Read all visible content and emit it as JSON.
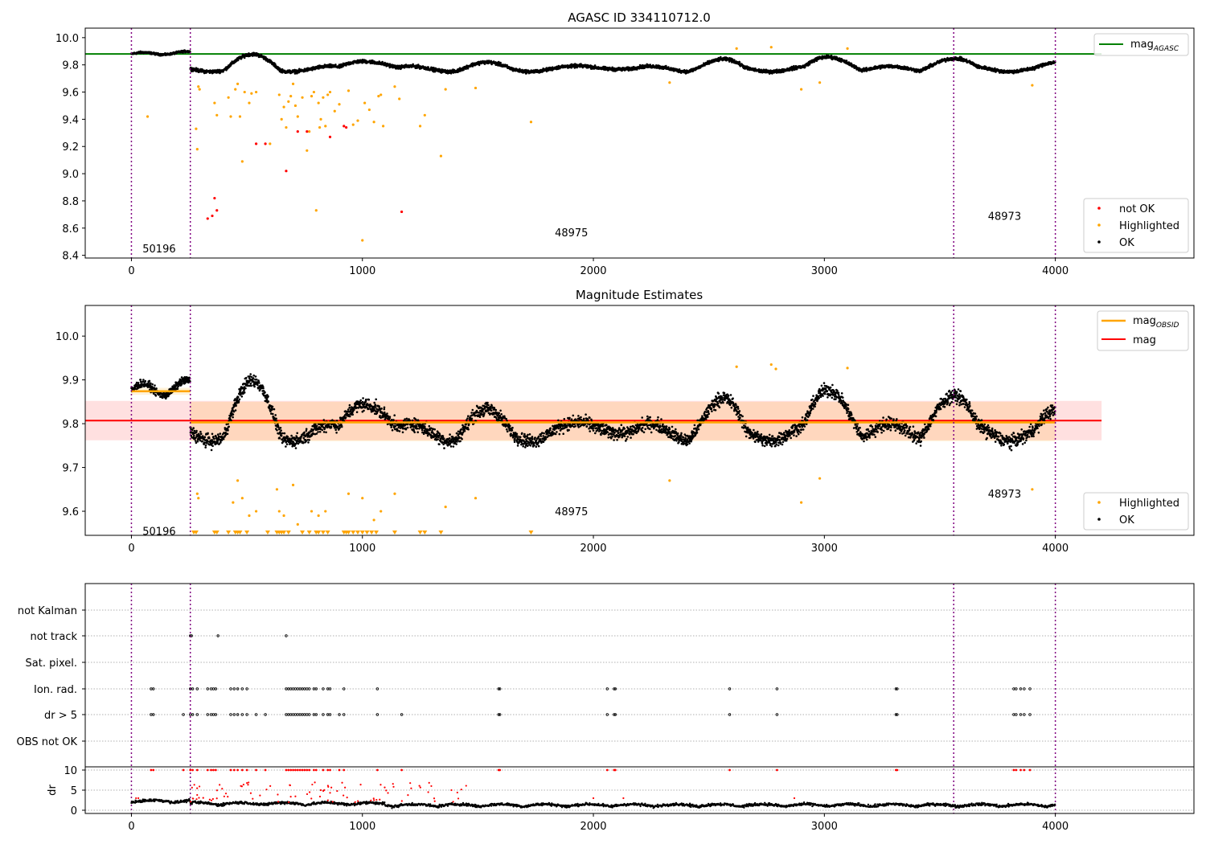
{
  "chart_data": [
    {
      "type": "scatter",
      "title": "AGASC ID 334110712.0",
      "xlim": [
        -200,
        4600
      ],
      "ylim": [
        8.38,
        10.07
      ],
      "x_ticks": [
        0,
        1000,
        2000,
        3000,
        4000
      ],
      "y_ticks": [
        8.4,
        8.6,
        8.8,
        9.0,
        9.2,
        9.4,
        9.6,
        9.8,
        10.0
      ],
      "x_tick_labels": [
        "0",
        "1000",
        "2000",
        "3000",
        "4000"
      ],
      "y_tick_labels": [
        "8.4",
        "8.6",
        "8.8",
        "9.0",
        "9.2",
        "9.4",
        "9.6",
        "9.8",
        "10.0"
      ],
      "legend_top": {
        "position": "upper-right",
        "entries": [
          "mag_AGASC"
        ]
      },
      "legend_bottom": {
        "position": "lower-right",
        "entries": [
          "not OK",
          "Highlighted",
          "OK"
        ]
      },
      "mag_agasc": 9.88,
      "mag_agasc_x_end": 4200,
      "obs_boundaries": [
        0,
        255,
        3560,
        4000
      ],
      "obs_labels": [
        {
          "text": "50196",
          "x": 120,
          "y": 8.45
        },
        {
          "text": "48975",
          "x": 1905,
          "y": 8.57
        },
        {
          "text": "48973",
          "x": 3780,
          "y": 8.69
        }
      ],
      "series": [
        {
          "name": "OK",
          "color": "#000000",
          "shape": "circle",
          "description": "~4000 points; 9.85-9.91 for x<255, then oscillating 9.71-9.90 with baseline near 9.78"
        },
        {
          "name": "Highlighted",
          "color": "#ffa500",
          "shape": "circle",
          "points": [
            [
              70,
              9.42
            ],
            [
              280,
              9.33
            ],
            [
              285,
              9.18
            ],
            [
              290,
              9.64
            ],
            [
              295,
              9.62
            ],
            [
              360,
              9.52
            ],
            [
              370,
              9.43
            ],
            [
              420,
              9.56
            ],
            [
              430,
              9.42
            ],
            [
              450,
              9.62
            ],
            [
              460,
              9.66
            ],
            [
              470,
              9.42
            ],
            [
              480,
              9.09
            ],
            [
              490,
              9.6
            ],
            [
              510,
              9.52
            ],
            [
              520,
              9.59
            ],
            [
              540,
              9.6
            ],
            [
              600,
              9.22
            ],
            [
              640,
              9.58
            ],
            [
              650,
              9.4
            ],
            [
              660,
              9.49
            ],
            [
              670,
              9.34
            ],
            [
              680,
              9.53
            ],
            [
              690,
              9.57
            ],
            [
              700,
              9.66
            ],
            [
              710,
              9.5
            ],
            [
              720,
              9.42
            ],
            [
              740,
              9.56
            ],
            [
              760,
              9.17
            ],
            [
              770,
              9.31
            ],
            [
              780,
              9.57
            ],
            [
              790,
              9.6
            ],
            [
              800,
              8.73
            ],
            [
              810,
              9.52
            ],
            [
              815,
              9.34
            ],
            [
              820,
              9.4
            ],
            [
              830,
              9.56
            ],
            [
              840,
              9.35
            ],
            [
              850,
              9.58
            ],
            [
              860,
              9.6
            ],
            [
              880,
              9.46
            ],
            [
              900,
              9.51
            ],
            [
              940,
              9.61
            ],
            [
              960,
              9.36
            ],
            [
              980,
              9.39
            ],
            [
              1000,
              8.51
            ],
            [
              1010,
              9.52
            ],
            [
              1030,
              9.47
            ],
            [
              1050,
              9.38
            ],
            [
              1070,
              9.57
            ],
            [
              1080,
              9.58
            ],
            [
              1090,
              9.35
            ],
            [
              1140,
              9.64
            ],
            [
              1160,
              9.55
            ],
            [
              1250,
              9.35
            ],
            [
              1270,
              9.43
            ],
            [
              1340,
              9.13
            ],
            [
              1360,
              9.62
            ],
            [
              1490,
              9.63
            ],
            [
              1730,
              9.38
            ],
            [
              2330,
              9.67
            ],
            [
              2620,
              9.92
            ],
            [
              2770,
              9.93
            ],
            [
              2900,
              9.62
            ],
            [
              2980,
              9.67
            ],
            [
              3100,
              9.92
            ],
            [
              3900,
              9.65
            ]
          ]
        },
        {
          "name": "not OK",
          "color": "#ff0000",
          "shape": "circle",
          "points": [
            [
              330,
              8.67
            ],
            [
              350,
              8.69
            ],
            [
              360,
              8.82
            ],
            [
              370,
              8.73
            ],
            [
              540,
              9.22
            ],
            [
              580,
              9.22
            ],
            [
              670,
              9.02
            ],
            [
              720,
              9.31
            ],
            [
              760,
              9.31
            ],
            [
              860,
              9.27
            ],
            [
              920,
              9.35
            ],
            [
              930,
              9.34
            ],
            [
              1170,
              8.72
            ]
          ]
        }
      ]
    },
    {
      "type": "scatter",
      "title": "Magnitude Estimates",
      "xlim": [
        -200,
        4600
      ],
      "ylim": [
        9.545,
        10.07
      ],
      "x_ticks": [
        0,
        1000,
        2000,
        3000,
        4000
      ],
      "y_ticks": [
        9.6,
        9.7,
        9.8,
        9.9,
        10.0
      ],
      "x_tick_labels": [
        "0",
        "1000",
        "2000",
        "3000",
        "4000"
      ],
      "y_tick_labels": [
        "9.6",
        "9.7",
        "9.8",
        "9.9",
        "10.0"
      ],
      "legend_top": {
        "position": "upper-right",
        "entries": [
          "mag_OBSID",
          "mag"
        ]
      },
      "legend_bottom": {
        "position": "lower-right",
        "entries": [
          "Highlighted",
          "OK"
        ]
      },
      "mag": 9.807,
      "mag_band": [
        9.762,
        9.852
      ],
      "mag_x_end": 4200,
      "mag_obsid_segments": [
        {
          "x0": 0,
          "x1": 255,
          "y": 9.874,
          "band": [
            9.866,
            9.882
          ]
        },
        {
          "x0": 255,
          "x1": 3560,
          "y": 9.803,
          "band": [
            9.76,
            9.85
          ]
        },
        {
          "x0": 3560,
          "x1": 4000,
          "y": 9.803,
          "band": [
            9.76,
            9.85
          ]
        }
      ],
      "obs_boundaries": [
        0,
        255,
        3560,
        4000
      ],
      "obs_labels": [
        {
          "text": "50196",
          "x": 120,
          "y": 9.555
        },
        {
          "text": "48975",
          "x": 1905,
          "y": 9.6
        },
        {
          "text": "48973",
          "x": 3780,
          "y": 9.64
        }
      ],
      "series": [
        {
          "name": "OK",
          "color": "#000000",
          "shape": "circle",
          "description": "~4000 points; 9.84-9.92 for x<255, then oscillating 9.70-9.90 around 9.80"
        },
        {
          "name": "Highlighted",
          "color": "#ffa500",
          "shape": "circle",
          "points": [
            [
              285,
              9.64
            ],
            [
              290,
              9.63
            ],
            [
              440,
              9.62
            ],
            [
              460,
              9.67
            ],
            [
              480,
              9.63
            ],
            [
              510,
              9.59
            ],
            [
              540,
              9.6
            ],
            [
              630,
              9.65
            ],
            [
              640,
              9.6
            ],
            [
              660,
              9.59
            ],
            [
              700,
              9.66
            ],
            [
              720,
              9.57
            ],
            [
              780,
              9.6
            ],
            [
              810,
              9.59
            ],
            [
              840,
              9.6
            ],
            [
              940,
              9.64
            ],
            [
              1000,
              9.63
            ],
            [
              1050,
              9.58
            ],
            [
              1080,
              9.6
            ],
            [
              1140,
              9.64
            ],
            [
              1360,
              9.61
            ],
            [
              1490,
              9.63
            ],
            [
              2330,
              9.67
            ],
            [
              2620,
              9.93
            ],
            [
              2770,
              9.935
            ],
            [
              2790,
              9.925
            ],
            [
              2900,
              9.62
            ],
            [
              2980,
              9.675
            ],
            [
              3100,
              9.927
            ],
            [
              3900,
              9.65
            ]
          ]
        },
        {
          "name": "Highlighted (below axis)",
          "color": "#ffa500",
          "shape": "triangle-down",
          "x": [
            270,
            280,
            360,
            370,
            420,
            450,
            460,
            470,
            500,
            590,
            630,
            640,
            650,
            660,
            680,
            740,
            770,
            800,
            810,
            830,
            850,
            920,
            930,
            940,
            960,
            980,
            1000,
            1020,
            1040,
            1060,
            1140,
            1250,
            1270,
            1340,
            1730
          ]
        }
      ]
    },
    {
      "type": "scatter",
      "title": "",
      "xlim": [
        -200,
        4600
      ],
      "x_ticks": [
        0,
        1000,
        2000,
        3000,
        4000
      ],
      "x_tick_labels": [
        "0",
        "1000",
        "2000",
        "3000",
        "4000"
      ],
      "ylabel": "dr",
      "flag_rows": [
        "not Kalman",
        "not track",
        "Sat. pixel.",
        "Ion. rad.",
        "dr > 5",
        "OBS not OK"
      ],
      "flags": {
        "not track": [
          255,
          260,
          375,
          670
        ],
        "Ion. rad.": [
          85,
          95,
          255,
          265,
          285,
          330,
          345,
          355,
          365,
          430,
          445,
          460,
          480,
          500,
          670,
          680,
          690,
          700,
          710,
          720,
          730,
          740,
          750,
          760,
          770,
          790,
          800,
          830,
          850,
          860,
          920,
          1065,
          1590,
          1595,
          2060,
          2090,
          2095,
          2590,
          2795,
          3310,
          3315,
          3820,
          3830,
          3850,
          3865,
          3890
        ],
        "dr > 5": [
          85,
          95,
          225,
          255,
          265,
          285,
          330,
          345,
          355,
          365,
          430,
          445,
          460,
          480,
          500,
          540,
          580,
          670,
          680,
          690,
          700,
          710,
          720,
          730,
          740,
          750,
          760,
          770,
          790,
          800,
          830,
          850,
          860,
          900,
          920,
          1065,
          1170,
          1590,
          1595,
          2060,
          2090,
          2095,
          2590,
          2795,
          3310,
          3315,
          3820,
          3830,
          3850,
          3865,
          3890
        ]
      },
      "dr_ylim": [
        -0.5,
        10.5
      ],
      "dr_y_ticks": [
        0,
        5,
        10
      ],
      "dr_y_tick_labels": [
        "0",
        "5",
        "10"
      ],
      "dr_description": "black dots 0-3 with red points at dr>=5 capped at 10 for flagged observations",
      "obs_boundaries": [
        0,
        255,
        3560,
        4000
      ]
    }
  ]
}
